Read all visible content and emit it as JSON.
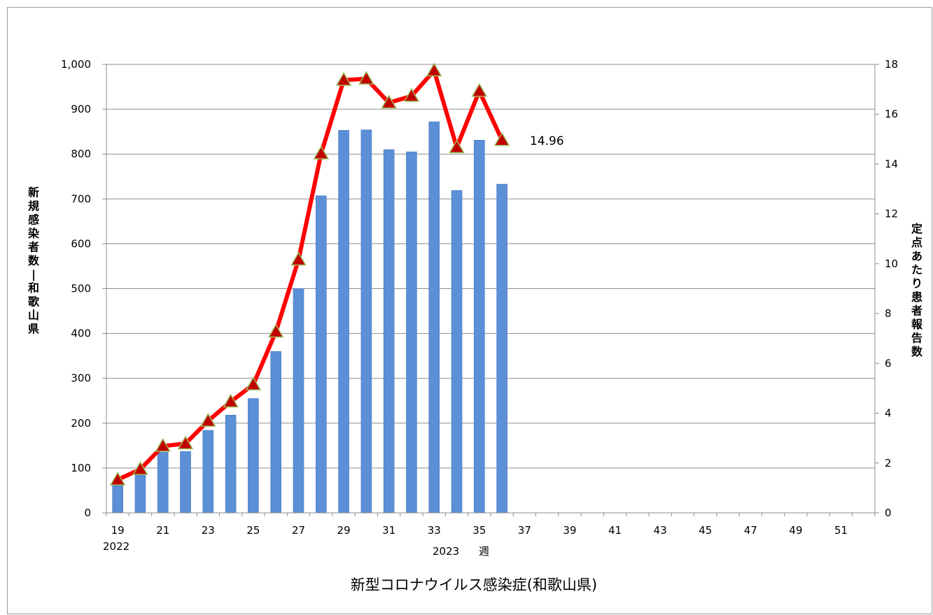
{
  "chart_data": {
    "type": "bar+line",
    "title": "新型コロナウイルス感染症(和歌山県)",
    "xlabel": "週",
    "year_start_label": "2022",
    "year_mid_label": "2023",
    "ylabel_left": "新規感染者数-和歌山県",
    "ylabel_right": "定点あたり患者報告数",
    "x_range": [
      19,
      52
    ],
    "x_tick_labels": [
      "19",
      "21",
      "23",
      "25",
      "27",
      "29",
      "31",
      "33",
      "35",
      "37",
      "39",
      "41",
      "43",
      "45",
      "47",
      "49",
      "51"
    ],
    "y_left_range": [
      0,
      1000
    ],
    "y_left_ticks": [
      "0",
      "100",
      "200",
      "300",
      "400",
      "500",
      "600",
      "700",
      "800",
      "900",
      "1,000"
    ],
    "y_right_range": [
      0,
      18
    ],
    "y_right_ticks": [
      "0",
      "2",
      "4",
      "6",
      "8",
      "10",
      "12",
      "14",
      "16",
      "18"
    ],
    "grid": true,
    "bar_color": "#5b8fd6",
    "line_color": "#ff0000",
    "marker_color": "#c00000",
    "marker_edge_color": "#9bbb59",
    "series": [
      {
        "name": "新規感染者数",
        "axis": "left",
        "type": "bar",
        "x": [
          19,
          20,
          21,
          22,
          23,
          24,
          25,
          26,
          27,
          28,
          29,
          30,
          31,
          32,
          33,
          34,
          35,
          36
        ],
        "values": [
          65,
          85,
          135,
          137,
          184,
          218,
          255,
          360,
          500,
          707,
          853,
          854,
          810,
          805,
          872,
          719,
          831,
          733
        ]
      },
      {
        "name": "定点あたり患者報告数",
        "axis": "right",
        "type": "line",
        "x": [
          19,
          20,
          21,
          22,
          23,
          24,
          25,
          26,
          27,
          28,
          29,
          30,
          31,
          32,
          33,
          34,
          35,
          36
        ],
        "values": [
          1.33,
          1.75,
          2.68,
          2.78,
          3.69,
          4.46,
          5.15,
          7.27,
          10.16,
          14.42,
          17.37,
          17.42,
          16.46,
          16.73,
          17.75,
          14.67,
          16.93,
          14.96
        ]
      }
    ],
    "annotation": "14.96"
  }
}
